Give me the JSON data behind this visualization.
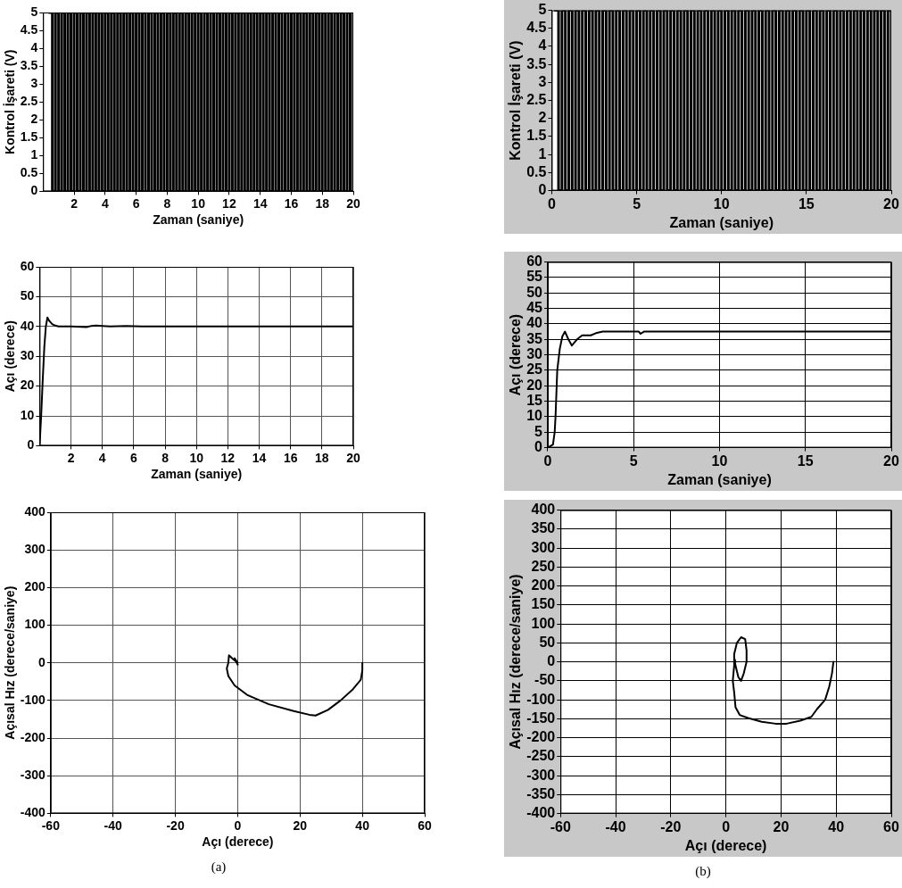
{
  "chart_data": [
    {
      "type": "step",
      "xlabel": "Zaman (saniye)",
      "ylabel": "Kontrol İşareti (V)",
      "xlim": [
        0,
        20
      ],
      "xticks": [
        2,
        4,
        6,
        8,
        10,
        12,
        14,
        16,
        18,
        20
      ],
      "ylim": [
        0,
        5
      ],
      "yticks": [
        0,
        0.5,
        1,
        1.5,
        2,
        2.5,
        3,
        3.5,
        4,
        4.5,
        5
      ],
      "x": [
        0.4,
        0.6,
        0.8,
        1,
        1.2,
        1.4,
        1.6,
        1.8,
        2,
        2.2,
        2.4,
        2.6,
        2.8,
        3,
        3.2,
        3.4,
        3.6,
        3.8,
        4,
        4.2,
        4.4,
        4.6,
        4.8,
        5,
        5.2,
        5.4,
        5.6,
        5.8,
        6,
        6.2,
        6.4,
        6.6,
        6.8,
        7,
        7.2,
        7.4,
        7.6,
        7.8,
        8,
        8.2,
        8.4,
        8.6,
        8.8,
        9,
        9.2,
        9.4,
        9.6,
        9.8,
        10,
        10.2,
        10.4,
        10.6,
        10.8,
        11,
        11.2,
        11.4,
        11.6,
        11.8,
        12,
        12.2,
        12.4,
        12.6,
        12.8,
        13,
        13.2,
        13.4,
        13.6,
        13.8,
        14,
        14.2,
        14.4,
        14.6,
        14.8,
        15,
        15.2,
        15.4,
        15.6,
        15.8,
        16,
        16.2,
        16.4,
        16.6,
        16.8,
        17,
        17.2,
        17.4,
        17.6,
        17.8,
        18,
        18.2,
        18.4,
        18.6,
        18.8,
        19,
        19.2,
        19.4,
        19.6,
        19.8,
        20
      ],
      "series": [
        {
          "color": "#000000",
          "values": [
            5,
            0,
            5,
            0,
            5,
            0,
            5,
            0,
            5,
            0,
            5,
            0,
            5,
            0,
            5,
            0,
            5,
            0,
            5,
            0,
            5,
            0,
            5,
            0,
            5,
            0,
            5,
            0,
            5,
            0,
            5,
            0,
            5,
            0,
            5,
            0,
            5,
            0,
            5,
            0,
            5,
            0,
            5,
            0,
            5,
            0,
            5,
            0,
            5,
            0,
            5,
            0,
            5,
            0,
            5,
            0,
            5,
            0,
            5,
            0,
            5,
            0,
            5,
            0,
            5,
            0,
            5,
            0,
            5,
            0,
            5,
            0,
            5,
            0,
            5,
            0,
            5,
            0,
            5,
            0,
            5,
            0,
            5,
            0,
            5,
            0,
            5,
            0,
            5,
            0,
            5,
            0,
            5,
            0,
            5,
            0,
            5,
            0,
            5
          ]
        }
      ]
    },
    {
      "type": "step",
      "xlabel": "Zaman (saniye)",
      "ylabel": "Kontrol İşareti (V)",
      "xlim": [
        0,
        20
      ],
      "xticks": [
        0,
        5,
        10,
        15,
        20
      ],
      "ylim": [
        0,
        5
      ],
      "yticks": [
        0,
        0.5,
        1,
        1.5,
        2,
        2.5,
        3,
        3.5,
        4,
        4.5,
        5
      ],
      "x": [
        0.2,
        0.4,
        0.6,
        0.8,
        1,
        1.2,
        1.4,
        1.6,
        1.8,
        2,
        2.2,
        2.4,
        2.6,
        2.8,
        3,
        3.2,
        3.4,
        3.6,
        3.8,
        4,
        4.2,
        4.4,
        4.6,
        4.8,
        5,
        5.2,
        5.4,
        5.6,
        5.8,
        6,
        6.2,
        6.4,
        6.6,
        6.8,
        7,
        7.2,
        7.4,
        7.6,
        7.8,
        8,
        8.2,
        8.4,
        8.6,
        8.8,
        9,
        9.2,
        9.4,
        9.6,
        9.8,
        10,
        10.2,
        10.4,
        10.6,
        10.8,
        11,
        11.2,
        11.4,
        11.6,
        11.8,
        12,
        12.2,
        12.4,
        12.6,
        12.8,
        13,
        13.2,
        13.4,
        13.6,
        13.8,
        14,
        14.2,
        14.4,
        14.6,
        14.8,
        15,
        15.2,
        15.4,
        15.6,
        15.8,
        16,
        16.2,
        16.4,
        16.6,
        16.8,
        17,
        17.2,
        17.4,
        17.6,
        17.8,
        18,
        18.2,
        18.4,
        18.6,
        18.8,
        19,
        19.2,
        19.4,
        19.6,
        19.8,
        20
      ],
      "series": [
        {
          "color": "#000000",
          "values": [
            5,
            0,
            5,
            0,
            5,
            0,
            5,
            0,
            5,
            0,
            5,
            0,
            5,
            0,
            5,
            0,
            5,
            0,
            5,
            0,
            5,
            0,
            5,
            0,
            5,
            0,
            5,
            0,
            5,
            0,
            5,
            0,
            5,
            0,
            5,
            0,
            5,
            0,
            5,
            0,
            5,
            0,
            5,
            0,
            5,
            0,
            5,
            0,
            5,
            0,
            5,
            0,
            5,
            0,
            5,
            0,
            5,
            0,
            5,
            0,
            5,
            0,
            5,
            0,
            5,
            0,
            5,
            0,
            5,
            0,
            5,
            0,
            5,
            0,
            5,
            0,
            5,
            0,
            5,
            0,
            5,
            0,
            5,
            0,
            5,
            0,
            5,
            0,
            5,
            0,
            5,
            0,
            5,
            0,
            5,
            0,
            5,
            0,
            5,
            0
          ]
        }
      ]
    },
    {
      "type": "line",
      "xlabel": "Zaman (saniye)",
      "ylabel": "Açı (derece)",
      "xlim": [
        0,
        20
      ],
      "xticks": [
        2,
        4,
        6,
        8,
        10,
        12,
        14,
        16,
        18,
        20
      ],
      "ylim": [
        0,
        60
      ],
      "yticks": [
        0,
        10,
        20,
        30,
        40,
        50,
        60
      ],
      "grid": true,
      "x": [
        0,
        0.1,
        0.2,
        0.3,
        0.4,
        0.5,
        0.6,
        0.8,
        1,
        1.2,
        2,
        3,
        3.3,
        3.6,
        4,
        4.5,
        5.5,
        6,
        6.5,
        8,
        10,
        20
      ],
      "series": [
        {
          "color": "#000000",
          "values": [
            0,
            10,
            22,
            33,
            40,
            43,
            42,
            40.8,
            40.3,
            40,
            40,
            39.8,
            40.2,
            40.3,
            40.2,
            40,
            40.2,
            40.1,
            40,
            40,
            40,
            40
          ]
        }
      ]
    },
    {
      "type": "line",
      "xlabel": "Zaman (saniye)",
      "ylabel": "Açı (derece)",
      "xlim": [
        0,
        20
      ],
      "xticks": [
        0,
        5,
        10,
        15,
        20
      ],
      "ylim": [
        0,
        60
      ],
      "yticks": [
        0,
        5,
        10,
        15,
        20,
        25,
        30,
        35,
        40,
        45,
        50,
        55,
        60
      ],
      "grid": true,
      "x": [
        0,
        0.3,
        0.4,
        0.45,
        0.55,
        0.7,
        0.85,
        1,
        1.2,
        1.4,
        1.7,
        2,
        2.5,
        2.8,
        3.2,
        5.3,
        5.4,
        5.6,
        20
      ],
      "series": [
        {
          "color": "#000000",
          "values": [
            0,
            1,
            5,
            10,
            25,
            32,
            36,
            37.5,
            35,
            33,
            35,
            36.3,
            36.3,
            37,
            37.5,
            37.5,
            36.8,
            37.5,
            37.5
          ]
        }
      ]
    },
    {
      "type": "line",
      "xlabel": "Açı (derece)",
      "ylabel": "Açısal Hız (derece/saniye)",
      "xlim": [
        -60,
        60
      ],
      "xticks": [
        -60,
        -40,
        -20,
        0,
        20,
        40,
        60
      ],
      "ylim": [
        -400,
        400
      ],
      "yticks": [
        -400,
        -300,
        -200,
        -100,
        0,
        100,
        200,
        300,
        400
      ],
      "grid": true,
      "annotations": [
        "(a)"
      ],
      "x": [
        40,
        40,
        39.5,
        37,
        33,
        29,
        25,
        23,
        18,
        10,
        3,
        -1,
        -3,
        -3.5,
        -3,
        -2.8,
        -1.5,
        0,
        -1,
        0
      ],
      "series": [
        {
          "color": "#000000",
          "values": [
            0,
            -20,
            -45,
            -70,
            -100,
            -125,
            -140,
            -138,
            -128,
            -110,
            -85,
            -60,
            -35,
            -15,
            0,
            20,
            10,
            0,
            12,
            -5
          ]
        }
      ]
    },
    {
      "type": "line",
      "xlabel": "Açı (derece)",
      "ylabel": "Açısal Hız (derece/saniye)",
      "xlim": [
        -60,
        60
      ],
      "xticks": [
        -60,
        -40,
        -20,
        0,
        20,
        40,
        60
      ],
      "ylim": [
        -400,
        400
      ],
      "yticks": [
        -400,
        -350,
        -300,
        -250,
        -200,
        -150,
        -100,
        -50,
        0,
        50,
        100,
        150,
        200,
        250,
        300,
        350,
        400
      ],
      "grid": true,
      "annotations": [
        "(b)"
      ],
      "x": [
        39,
        38.5,
        37.5,
        36,
        33,
        31,
        27,
        22,
        18,
        13,
        8,
        5,
        3.5,
        3,
        2.5,
        3,
        3,
        4,
        5.5,
        7,
        7.5,
        7.5,
        6.5,
        5.5,
        4.5,
        3.5,
        3,
        3.5
      ],
      "series": [
        {
          "color": "#000000",
          "values": [
            0,
            -30,
            -65,
            -100,
            -125,
            -145,
            -155,
            -163,
            -163,
            -158,
            -148,
            -140,
            -120,
            -80,
            -50,
            -10,
            20,
            50,
            65,
            60,
            30,
            0,
            -30,
            -50,
            -40,
            -10,
            10,
            0
          ]
        }
      ]
    }
  ]
}
